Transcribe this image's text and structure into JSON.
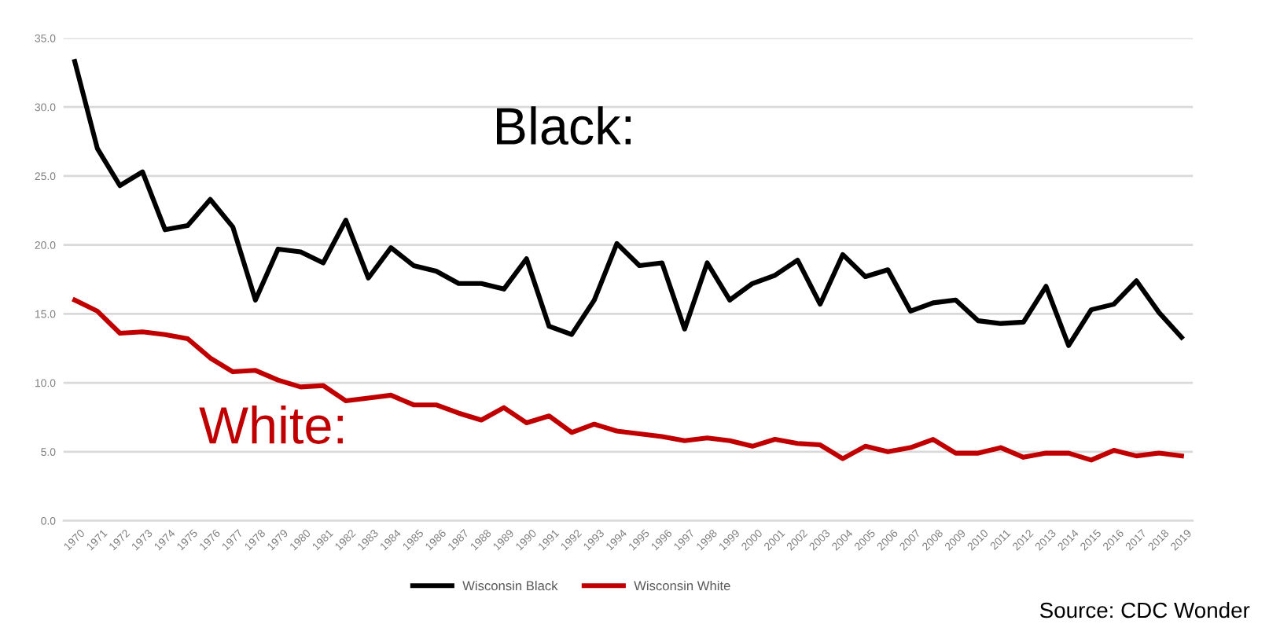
{
  "chart_data": {
    "type": "line",
    "categories": [
      "1970",
      "1971",
      "1972",
      "1973",
      "1974",
      "1975",
      "1976",
      "1977",
      "1978",
      "1979",
      "1980",
      "1981",
      "1982",
      "1983",
      "1984",
      "1985",
      "1986",
      "1987",
      "1988",
      "1989",
      "1990",
      "1991",
      "1992",
      "1993",
      "1994",
      "1995",
      "1996",
      "1997",
      "1998",
      "1999",
      "2000",
      "2001",
      "2002",
      "2003",
      "2004",
      "2005",
      "2006",
      "2007",
      "2008",
      "2009",
      "2010",
      "2011",
      "2012",
      "2013",
      "2014",
      "2015",
      "2016",
      "2017",
      "2018",
      "2019"
    ],
    "series": [
      {
        "name": "Wisconsin Black",
        "color": "#000000",
        "values": [
          33.3,
          27.0,
          24.3,
          25.3,
          21.1,
          21.4,
          23.3,
          21.3,
          16.0,
          19.7,
          19.5,
          18.7,
          21.8,
          17.6,
          19.8,
          18.5,
          18.1,
          17.2,
          17.2,
          16.8,
          19.0,
          14.1,
          13.5,
          16.0,
          20.1,
          18.5,
          18.7,
          13.9,
          18.7,
          16.0,
          17.2,
          17.8,
          18.9,
          15.7,
          19.3,
          17.7,
          18.2,
          15.2,
          15.8,
          16.0,
          14.5,
          14.3,
          14.4,
          17.0,
          12.7,
          15.3,
          15.7,
          17.4,
          15.1,
          13.3
        ]
      },
      {
        "name": "Wisconsin White",
        "color": "#c00000",
        "values": [
          16.0,
          15.2,
          13.6,
          13.7,
          13.5,
          13.2,
          11.8,
          10.8,
          10.9,
          10.2,
          9.7,
          9.8,
          8.7,
          8.9,
          9.1,
          8.4,
          8.4,
          7.8,
          7.3,
          8.2,
          7.1,
          7.6,
          6.4,
          7.0,
          6.5,
          6.3,
          6.1,
          5.8,
          6.0,
          5.8,
          5.4,
          5.9,
          5.6,
          5.5,
          4.5,
          5.4,
          5.0,
          5.3,
          5.9,
          4.9,
          4.9,
          5.3,
          4.6,
          4.9,
          4.9,
          4.4,
          5.1,
          4.7,
          4.9,
          4.7
        ]
      }
    ],
    "ylim": [
      0,
      35
    ],
    "yticks": [
      {
        "value": 0,
        "label": "0.0"
      },
      {
        "value": 5,
        "label": "5.0"
      },
      {
        "value": 10,
        "label": "10.0"
      },
      {
        "value": 15,
        "label": "15.0"
      },
      {
        "value": 20,
        "label": "20.0"
      },
      {
        "value": 25,
        "label": "25.0"
      },
      {
        "value": 30,
        "label": "30.0"
      },
      {
        "value": 35,
        "label": "35.0"
      }
    ],
    "grid": "y",
    "legend": "bottom",
    "marker": "none",
    "line_style": "solid",
    "annotations": [
      "Black:",
      "White:",
      "Source: CDC Wonder"
    ]
  }
}
